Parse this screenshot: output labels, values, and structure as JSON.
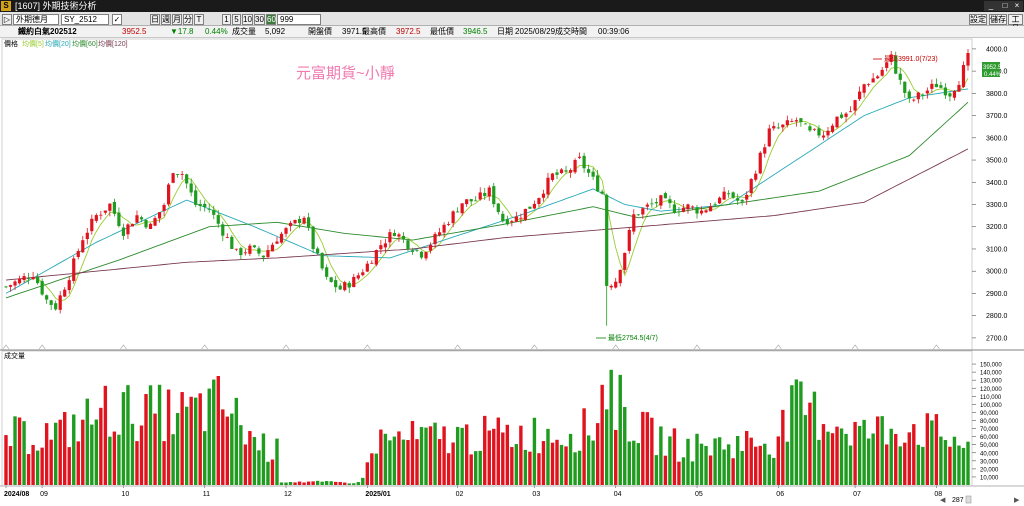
{
  "window": {
    "title": "[1607] 外期技術分析",
    "settings": "設定",
    "save": "儲存",
    "tools": "工具"
  },
  "toolbar": {
    "market": "外期德月",
    "symbol": "SY_2512",
    "periods": [
      "日",
      "週",
      "月",
      "分",
      "T"
    ],
    "intervals": [
      "1",
      "5",
      "10",
      "30"
    ],
    "active_interval": "60",
    "bar_count": "999"
  },
  "info": {
    "name": "鐵約白氣202512",
    "price": "3952.5",
    "change": "▼17.8",
    "change_pct": "0.44%",
    "volume_label": "成交量",
    "volume": "5,092",
    "open_label": "開盤價",
    "open": "3971.5",
    "high_label": "最高價",
    "high": "3972.5",
    "low_label": "最低價",
    "low": "3946.5",
    "date_label": "日期",
    "date": "2025/08/29",
    "time_label": "成交時間",
    "time": "00:39:06"
  },
  "price_panel": {
    "legend": [
      "價格",
      "均價[5]",
      "均價[20]",
      "均價[60]",
      "均價[120]"
    ],
    "watermark": "元富期貨~小靜",
    "high_annot": "最高3991.0(7/23)",
    "low_annot": "最低2754.5(4/7)",
    "last_price": "3952.5",
    "last_pct": "0.44%"
  },
  "volume_panel": {
    "title": "成交量"
  },
  "footer": {
    "count": "287"
  },
  "colors": {
    "up": "#e0141e",
    "down": "#1f9b1f",
    "ma5": "#9acd32",
    "ma20": "#2aa9b8",
    "ma60": "#2e8b2e",
    "ma120": "#7a3b50"
  },
  "chart_data": {
    "type": "candlestick",
    "price_axis": {
      "ticks": [
        2700,
        2800,
        2900,
        3000,
        3100,
        3200,
        3300,
        3400,
        3500,
        3600,
        3700,
        3800,
        3900,
        4000
      ],
      "ylim": [
        2650,
        4040
      ]
    },
    "volume_axis": {
      "ticks": [
        10000,
        20000,
        30000,
        40000,
        50000,
        60000,
        70000,
        80000,
        90000,
        100000,
        110000,
        120000,
        130000,
        140000,
        150000
      ],
      "tick_labels": [
        "10,000",
        "20,000",
        "30,000",
        "40,000",
        "50,000",
        "60,000",
        "70,000",
        "80,000",
        "90,000",
        "100,000",
        "110,000",
        "120,000",
        "130,000",
        "140,000",
        "150,000"
      ],
      "ylim": [
        0,
        160000
      ]
    },
    "x_labels": [
      "2024/08",
      "09",
      "10",
      "11",
      "12",
      "2025/01",
      "02",
      "03",
      "04",
      "05",
      "06",
      "07",
      "08"
    ],
    "x_label_index": [
      0,
      8,
      26,
      44,
      62,
      80,
      100,
      117,
      135,
      153,
      171,
      188,
      206
    ],
    "price_anchors": [
      [
        0,
        2930
      ],
      [
        3,
        2960
      ],
      [
        6,
        2990
      ],
      [
        9,
        2870
      ],
      [
        11,
        2840
      ],
      [
        14,
        2980
      ],
      [
        17,
        3150
      ],
      [
        20,
        3250
      ],
      [
        23,
        3300
      ],
      [
        26,
        3180
      ],
      [
        29,
        3250
      ],
      [
        32,
        3200
      ],
      [
        35,
        3300
      ],
      [
        37,
        3460
      ],
      [
        39,
        3440
      ],
      [
        42,
        3300
      ],
      [
        45,
        3280
      ],
      [
        48,
        3180
      ],
      [
        51,
        3080
      ],
      [
        54,
        3100
      ],
      [
        57,
        3070
      ],
      [
        60,
        3150
      ],
      [
        63,
        3200
      ],
      [
        66,
        3250
      ],
      [
        68,
        3110
      ],
      [
        71,
        2960
      ],
      [
        74,
        2920
      ],
      [
        77,
        2960
      ],
      [
        80,
        3030
      ],
      [
        83,
        3120
      ],
      [
        86,
        3180
      ],
      [
        89,
        3120
      ],
      [
        92,
        3080
      ],
      [
        95,
        3150
      ],
      [
        98,
        3230
      ],
      [
        101,
        3310
      ],
      [
        104,
        3320
      ],
      [
        107,
        3360
      ],
      [
        110,
        3230
      ],
      [
        113,
        3240
      ],
      [
        116,
        3290
      ],
      [
        118,
        3340
      ],
      [
        121,
        3430
      ],
      [
        124,
        3440
      ],
      [
        127,
        3500
      ],
      [
        130,
        3410
      ],
      [
        132,
        3350
      ],
      [
        133,
        2940
      ],
      [
        135,
        2960
      ],
      [
        137,
        3090
      ],
      [
        139,
        3250
      ],
      [
        142,
        3290
      ],
      [
        145,
        3320
      ],
      [
        148,
        3280
      ],
      [
        151,
        3290
      ],
      [
        154,
        3270
      ],
      [
        157,
        3310
      ],
      [
        160,
        3350
      ],
      [
        163,
        3300
      ],
      [
        166,
        3460
      ],
      [
        169,
        3630
      ],
      [
        172,
        3650
      ],
      [
        175,
        3680
      ],
      [
        178,
        3620
      ],
      [
        181,
        3620
      ],
      [
        184,
        3690
      ],
      [
        187,
        3720
      ],
      [
        190,
        3840
      ],
      [
        193,
        3880
      ],
      [
        196,
        3960
      ],
      [
        198,
        3850
      ],
      [
        200,
        3760
      ],
      [
        203,
        3800
      ],
      [
        206,
        3840
      ],
      [
        209,
        3800
      ],
      [
        211,
        3860
      ],
      [
        213,
        3960
      ]
    ],
    "ma_anchors": {
      "ma20": [
        [
          0,
          2900
        ],
        [
          20,
          3130
        ],
        [
          40,
          3320
        ],
        [
          55,
          3200
        ],
        [
          70,
          3070
        ],
        [
          85,
          3060
        ],
        [
          100,
          3160
        ],
        [
          115,
          3260
        ],
        [
          130,
          3370
        ],
        [
          137,
          3300
        ],
        [
          145,
          3270
        ],
        [
          160,
          3300
        ],
        [
          175,
          3500
        ],
        [
          190,
          3700
        ],
        [
          200,
          3780
        ],
        [
          213,
          3820
        ]
      ],
      "ma60": [
        [
          0,
          2880
        ],
        [
          25,
          3050
        ],
        [
          45,
          3200
        ],
        [
          60,
          3220
        ],
        [
          75,
          3170
        ],
        [
          90,
          3140
        ],
        [
          110,
          3210
        ],
        [
          130,
          3290
        ],
        [
          140,
          3240
        ],
        [
          160,
          3300
        ],
        [
          180,
          3360
        ],
        [
          200,
          3520
        ],
        [
          213,
          3760
        ]
      ],
      "ma120": [
        [
          0,
          2960
        ],
        [
          40,
          3040
        ],
        [
          60,
          3060
        ],
        [
          90,
          3100
        ],
        [
          110,
          3150
        ],
        [
          140,
          3200
        ],
        [
          170,
          3250
        ],
        [
          190,
          3310
        ],
        [
          213,
          3550
        ]
      ]
    },
    "volume_anchors": [
      [
        0,
        65000
      ],
      [
        12,
        70000
      ],
      [
        22,
        100000
      ],
      [
        40,
        95000
      ],
      [
        48,
        110000
      ],
      [
        55,
        60000
      ],
      [
        60,
        45000
      ],
      [
        61,
        5000
      ],
      [
        78,
        3000
      ],
      [
        80,
        25000
      ],
      [
        82,
        60000
      ],
      [
        100,
        65000
      ],
      [
        120,
        70000
      ],
      [
        130,
        75000
      ],
      [
        133,
        148000
      ],
      [
        135,
        115000
      ],
      [
        140,
        75000
      ],
      [
        150,
        50000
      ],
      [
        160,
        55000
      ],
      [
        170,
        60000
      ],
      [
        175,
        105000
      ],
      [
        190,
        70000
      ],
      [
        200,
        80000
      ],
      [
        213,
        55000
      ]
    ],
    "high": {
      "value": 3991.0,
      "date": "7/23"
    },
    "low": {
      "value": 2754.5,
      "date": "4/7"
    },
    "last": 3952.5
  }
}
